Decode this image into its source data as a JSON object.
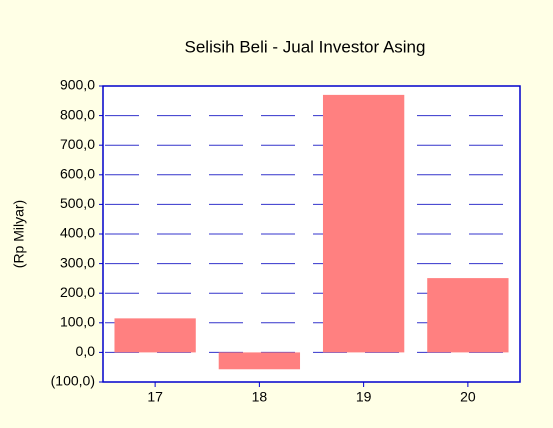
{
  "chart_data": {
    "type": "bar",
    "title": "Selisih Beli - Jual Investor Asing",
    "ylabel": "(Rp Milyar)",
    "categories": [
      "17",
      "18",
      "19",
      "20"
    ],
    "values": [
      115,
      -57,
      870,
      251
    ],
    "color": "#ff8080",
    "ylim": [
      -100,
      900
    ],
    "yticks": [
      {
        "value": -100,
        "label": "(100,0)"
      },
      {
        "value": 0,
        "label": "0,0"
      },
      {
        "value": 100,
        "label": "100,0"
      },
      {
        "value": 200,
        "label": "200,0"
      },
      {
        "value": 300,
        "label": "300,0"
      },
      {
        "value": 400,
        "label": "400,0"
      },
      {
        "value": 500,
        "label": "500,0"
      },
      {
        "value": 600,
        "label": "600,0"
      },
      {
        "value": 700,
        "label": "700,0"
      },
      {
        "value": 800,
        "label": "800,0"
      },
      {
        "value": 900,
        "label": "900,0"
      }
    ],
    "grid": true
  }
}
